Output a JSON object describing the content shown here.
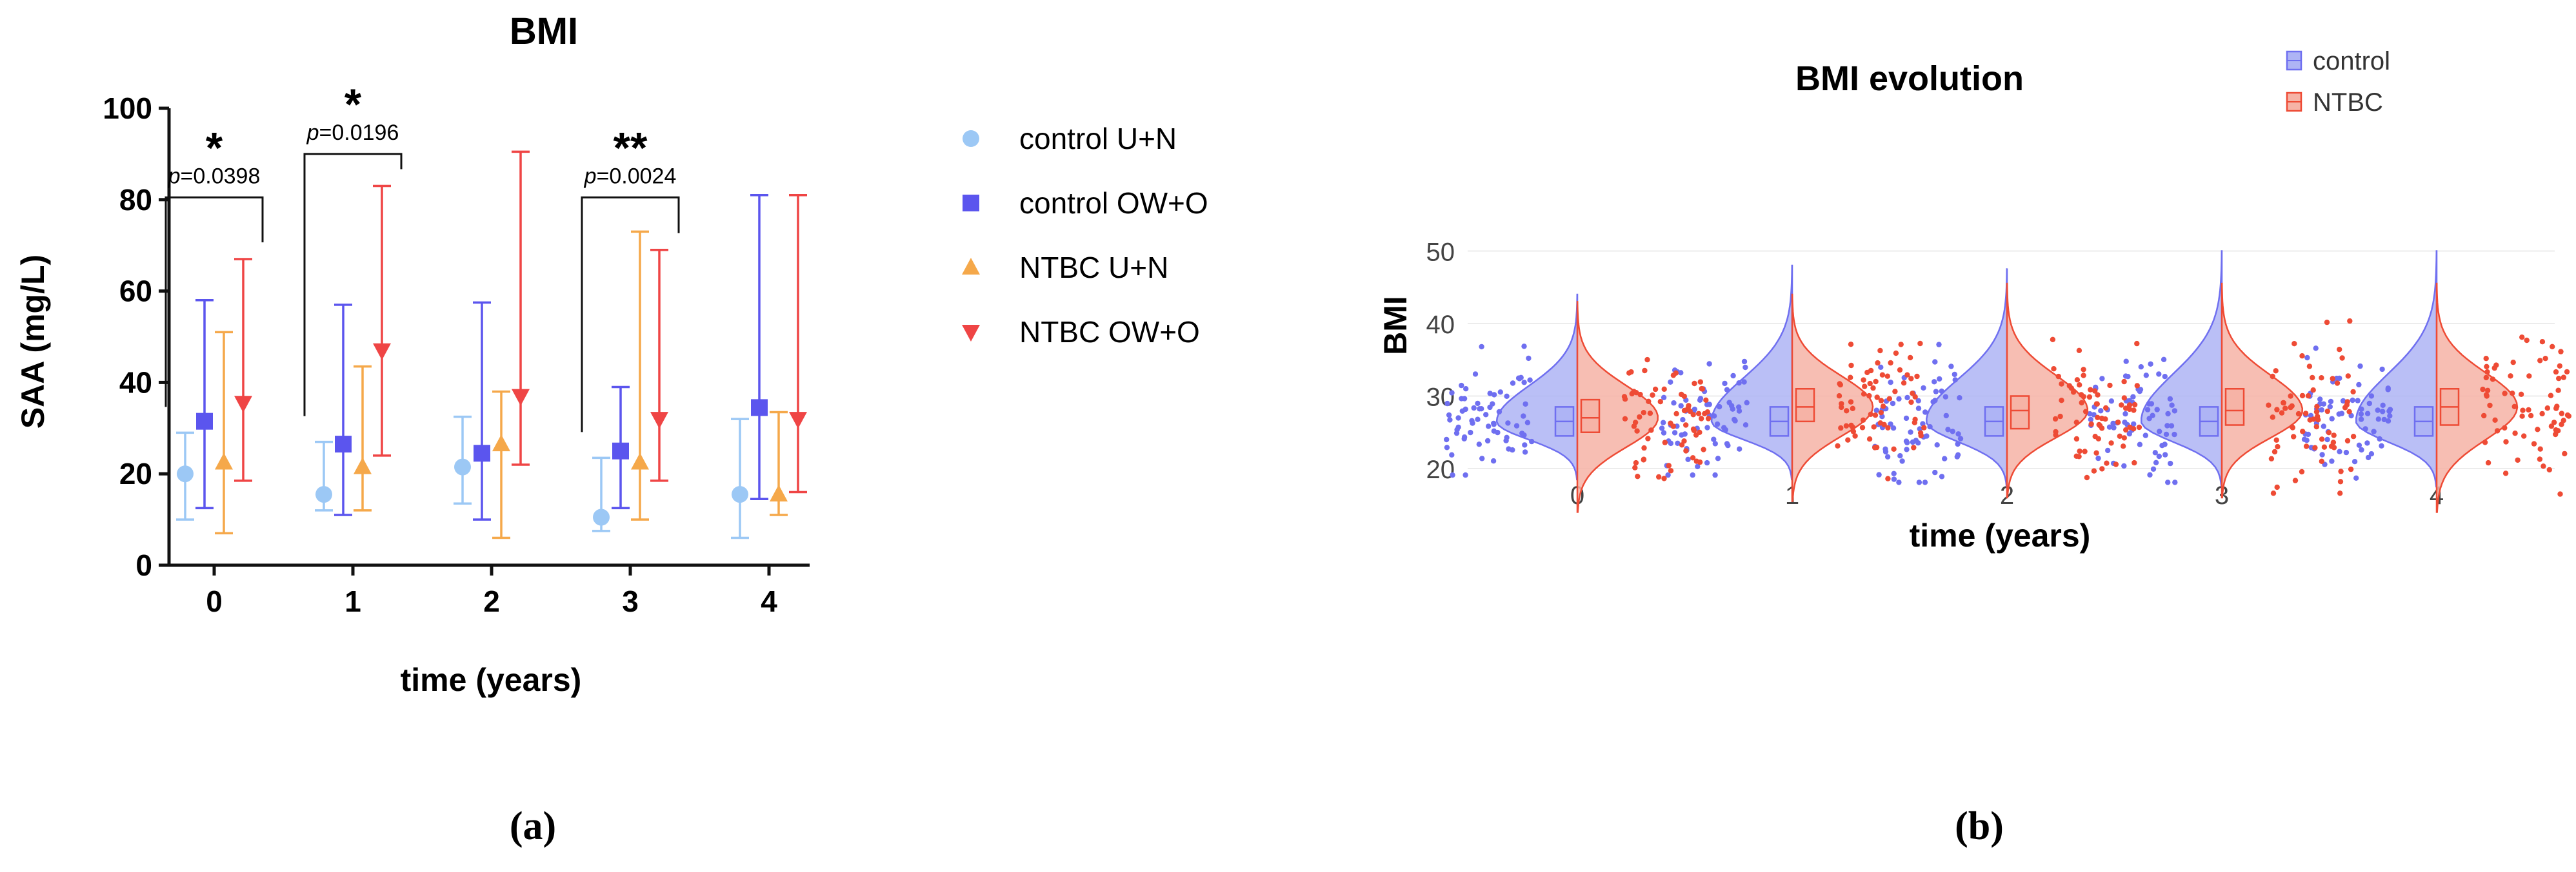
{
  "chart_data": [
    {
      "type": "scatter",
      "title": "BMI",
      "xlabel": "time (years)",
      "ylabel": "SAA (mg/L)",
      "caption": "(a)",
      "categories": [
        "0",
        "1",
        "2",
        "3",
        "4"
      ],
      "yticks": [
        "0",
        "20",
        "40",
        "60",
        "80",
        "100"
      ],
      "ylim": [
        0,
        100
      ],
      "legend_position": "right",
      "series": [
        {
          "name": "control U+N",
          "marker": "circle",
          "color": "#9cc8f5",
          "points": [
            {
              "x": "0",
              "y": 20,
              "low": 10,
              "high": 29
            },
            {
              "x": "1",
              "y": 15.5,
              "low": 12,
              "high": 27
            },
            {
              "x": "2",
              "y": 21.5,
              "low": 13.5,
              "high": 32.5
            },
            {
              "x": "3",
              "y": 10.5,
              "low": 7.5,
              "high": 23.5
            },
            {
              "x": "4",
              "y": 15.5,
              "low": 6,
              "high": 32
            }
          ]
        },
        {
          "name": "control OW+O",
          "marker": "square",
          "color": "#5b55ee",
          "points": [
            {
              "x": "0",
              "y": 31.5,
              "low": 12.5,
              "high": 58
            },
            {
              "x": "1",
              "y": 26.5,
              "low": 11,
              "high": 57
            },
            {
              "x": "2",
              "y": 24.5,
              "low": 10,
              "high": 57.5
            },
            {
              "x": "3",
              "y": 25,
              "low": 12.5,
              "high": 39
            },
            {
              "x": "4",
              "y": 34.5,
              "low": 14.5,
              "high": 81
            }
          ]
        },
        {
          "name": "NTBC U+N",
          "marker": "triangle-up",
          "color": "#f5a84a",
          "points": [
            {
              "x": "0",
              "y": 22.5,
              "low": 7,
              "high": 51
            },
            {
              "x": "1",
              "y": 21.5,
              "low": 12,
              "high": 43.5
            },
            {
              "x": "2",
              "y": 26.5,
              "low": 6,
              "high": 38
            },
            {
              "x": "3",
              "y": 22.5,
              "low": 10,
              "high": 73
            },
            {
              "x": "4",
              "y": 15.5,
              "low": 11,
              "high": 33.5
            }
          ]
        },
        {
          "name": "NTBC OW+O",
          "marker": "triangle-down",
          "color": "#ef4545",
          "points": [
            {
              "x": "0",
              "y": 35.5,
              "low": 18.5,
              "high": 67
            },
            {
              "x": "1",
              "y": 47,
              "low": 24,
              "high": 83
            },
            {
              "x": "2",
              "y": 37,
              "low": 22,
              "high": 90.5
            },
            {
              "x": "3",
              "y": 32,
              "low": 18.5,
              "high": 69
            },
            {
              "x": "4",
              "y": 32,
              "low": 16,
              "high": 81
            }
          ]
        }
      ],
      "annotations": [
        {
          "x": "0",
          "stars": "*",
          "p_prefix": "p",
          "p_value": "=0.0398",
          "bracket_y": 80.5
        },
        {
          "x": "1",
          "stars": "*",
          "p_prefix": "p",
          "p_value": "=0.0196",
          "bracket_y": 90
        },
        {
          "x": "3",
          "stars": "**",
          "p_prefix": "p",
          "p_value": "=0.0024",
          "bracket_y": 80.5
        }
      ]
    },
    {
      "type": "violin",
      "title": "BMI evolution",
      "xlabel": "time (years)",
      "ylabel": "BMI",
      "caption": "(b)",
      "categories": [
        "0",
        "1",
        "2",
        "3",
        "4"
      ],
      "yticks": [
        "20",
        "30",
        "40",
        "50"
      ],
      "ylim": [
        16,
        50
      ],
      "grid": true,
      "legend_position": "top-right",
      "series": [
        {
          "name": "control",
          "color": "#6f6ff0",
          "fill": "#aeb4f5",
          "groups": [
            {
              "x": "0",
              "q1": 24.5,
              "median": 26.5,
              "q3": 28.5,
              "min": 18.5,
              "max": 44
            },
            {
              "x": "1",
              "q1": 24.5,
              "median": 26.5,
              "q3": 28.5,
              "min": 18.5,
              "max": 48
            },
            {
              "x": "2",
              "q1": 24.5,
              "median": 26.5,
              "q3": 28.5,
              "min": 17.5,
              "max": 47.5
            },
            {
              "x": "3",
              "q1": 24.5,
              "median": 26.5,
              "q3": 28.5,
              "min": 17.5,
              "max": 50
            },
            {
              "x": "4",
              "q1": 24.5,
              "median": 26.5,
              "q3": 28.5,
              "min": 17.5,
              "max": 50
            }
          ]
        },
        {
          "name": "NTBC",
          "color": "#ee4b35",
          "fill": "#f6b3a6",
          "groups": [
            {
              "x": "0",
              "q1": 25,
              "median": 27,
              "q3": 29.5,
              "min": 14,
              "max": 43
            },
            {
              "x": "1",
              "q1": 26.5,
              "median": 28.5,
              "q3": 31,
              "min": 15.5,
              "max": 44
            },
            {
              "x": "2",
              "q1": 25.5,
              "median": 28,
              "q3": 30,
              "min": 16,
              "max": 45.5
            },
            {
              "x": "3",
              "q1": 26,
              "median": 28,
              "q3": 31,
              "min": 16,
              "max": 45.5
            },
            {
              "x": "4",
              "q1": 26,
              "median": 28.5,
              "q3": 31,
              "min": 14,
              "max": 45.5
            }
          ]
        }
      ]
    }
  ]
}
